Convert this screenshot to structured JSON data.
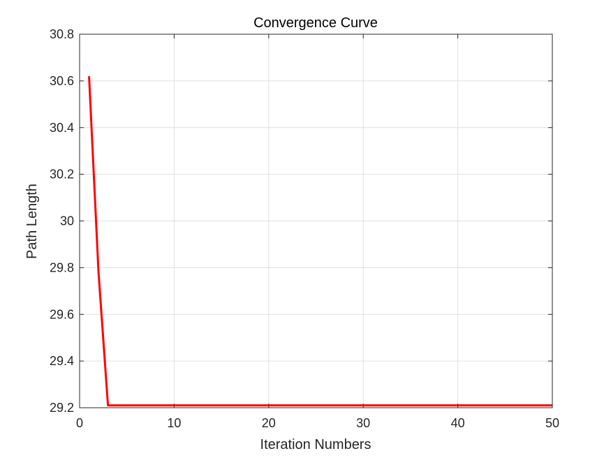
{
  "chart_data": {
    "type": "line",
    "title": "Convergence Curve",
    "xlabel": "Iteration Numbers",
    "ylabel": "Path Length",
    "xlim": [
      0,
      50
    ],
    "ylim": [
      29.2,
      30.8
    ],
    "xticks": [
      0,
      10,
      20,
      30,
      40,
      50
    ],
    "xtick_labels": [
      "0",
      "10",
      "20",
      "30",
      "40",
      "50"
    ],
    "yticks": [
      29.2,
      29.4,
      29.6,
      29.8,
      30.0,
      30.2,
      30.4,
      30.6,
      30.8
    ],
    "ytick_labels": [
      "29.2",
      "29.4",
      "29.6",
      "29.8",
      "30",
      "30.2",
      "30.4",
      "30.6",
      "30.8"
    ],
    "grid": true,
    "series": [
      {
        "color": "#ff0000",
        "x": [
          1,
          2,
          3,
          4,
          5,
          6,
          7,
          8,
          9,
          10,
          11,
          12,
          13,
          14,
          15,
          16,
          17,
          18,
          19,
          20,
          21,
          22,
          23,
          24,
          25,
          26,
          27,
          28,
          29,
          30,
          31,
          32,
          33,
          34,
          35,
          36,
          37,
          38,
          39,
          40,
          41,
          42,
          43,
          44,
          45,
          46,
          47,
          48,
          49,
          50
        ],
        "y": [
          30.62,
          29.78,
          29.21,
          29.21,
          29.21,
          29.21,
          29.21,
          29.21,
          29.21,
          29.21,
          29.21,
          29.21,
          29.21,
          29.21,
          29.21,
          29.21,
          29.21,
          29.21,
          29.21,
          29.21,
          29.21,
          29.21,
          29.21,
          29.21,
          29.21,
          29.21,
          29.21,
          29.21,
          29.21,
          29.21,
          29.21,
          29.21,
          29.21,
          29.21,
          29.21,
          29.21,
          29.21,
          29.21,
          29.21,
          29.21,
          29.21,
          29.21,
          29.21,
          29.21,
          29.21,
          29.21,
          29.21,
          29.21,
          29.21,
          29.21
        ]
      }
    ]
  }
}
